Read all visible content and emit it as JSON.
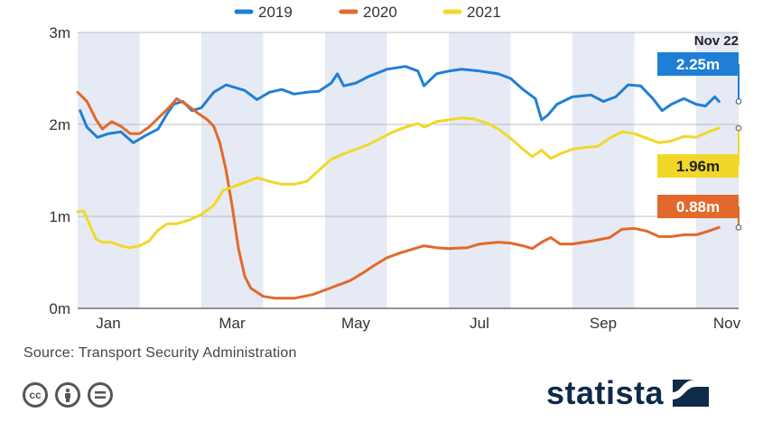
{
  "chart_data": {
    "type": "line",
    "title": "",
    "xlabel": "",
    "ylabel": "",
    "ylim": [
      0,
      3
    ],
    "y_ticks": [
      "0m",
      "1m",
      "2m",
      "3m"
    ],
    "x_ticks": [
      "Jan",
      "Mar",
      "May",
      "Jul",
      "Sep",
      "Nov"
    ],
    "end_date_label": "Nov 22",
    "legend_placement": "top",
    "series": [
      {
        "name": "2019",
        "color": "#1f7fd6",
        "end_label": "2.25m",
        "points": [
          [
            0.04,
            2.15
          ],
          [
            0.15,
            1.97
          ],
          [
            0.32,
            1.86
          ],
          [
            0.5,
            1.9
          ],
          [
            0.7,
            1.92
          ],
          [
            0.9,
            1.8
          ],
          [
            1.1,
            1.88
          ],
          [
            1.3,
            1.95
          ],
          [
            1.45,
            2.12
          ],
          [
            1.55,
            2.22
          ],
          [
            1.7,
            2.25
          ],
          [
            1.85,
            2.15
          ],
          [
            2.0,
            2.18
          ],
          [
            2.2,
            2.35
          ],
          [
            2.4,
            2.43
          ],
          [
            2.7,
            2.37
          ],
          [
            2.9,
            2.27
          ],
          [
            3.1,
            2.35
          ],
          [
            3.3,
            2.38
          ],
          [
            3.5,
            2.33
          ],
          [
            3.7,
            2.35
          ],
          [
            3.9,
            2.36
          ],
          [
            4.1,
            2.45
          ],
          [
            4.2,
            2.55
          ],
          [
            4.3,
            2.42
          ],
          [
            4.5,
            2.45
          ],
          [
            4.7,
            2.52
          ],
          [
            5.0,
            2.6
          ],
          [
            5.3,
            2.63
          ],
          [
            5.5,
            2.58
          ],
          [
            5.6,
            2.42
          ],
          [
            5.8,
            2.55
          ],
          [
            6.0,
            2.58
          ],
          [
            6.2,
            2.6
          ],
          [
            6.5,
            2.58
          ],
          [
            6.8,
            2.55
          ],
          [
            7.0,
            2.5
          ],
          [
            7.2,
            2.38
          ],
          [
            7.4,
            2.28
          ],
          [
            7.5,
            2.05
          ],
          [
            7.6,
            2.1
          ],
          [
            7.75,
            2.22
          ],
          [
            8.0,
            2.3
          ],
          [
            8.3,
            2.32
          ],
          [
            8.5,
            2.25
          ],
          [
            8.7,
            2.3
          ],
          [
            8.9,
            2.43
          ],
          [
            9.1,
            2.42
          ],
          [
            9.3,
            2.28
          ],
          [
            9.45,
            2.15
          ],
          [
            9.6,
            2.22
          ],
          [
            9.8,
            2.28
          ],
          [
            10.0,
            2.22
          ],
          [
            10.15,
            2.2
          ],
          [
            10.3,
            2.3
          ],
          [
            10.37,
            2.25
          ]
        ]
      },
      {
        "name": "2020",
        "color": "#e2692b",
        "end_label": "0.88m",
        "points": [
          [
            0.0,
            2.35
          ],
          [
            0.15,
            2.25
          ],
          [
            0.3,
            2.05
          ],
          [
            0.4,
            1.95
          ],
          [
            0.55,
            2.03
          ],
          [
            0.7,
            1.98
          ],
          [
            0.85,
            1.9
          ],
          [
            1.0,
            1.9
          ],
          [
            1.15,
            1.97
          ],
          [
            1.35,
            2.1
          ],
          [
            1.5,
            2.2
          ],
          [
            1.6,
            2.28
          ],
          [
            1.75,
            2.22
          ],
          [
            1.95,
            2.12
          ],
          [
            2.1,
            2.05
          ],
          [
            2.2,
            1.98
          ],
          [
            2.3,
            1.8
          ],
          [
            2.4,
            1.5
          ],
          [
            2.5,
            1.1
          ],
          [
            2.6,
            0.65
          ],
          [
            2.7,
            0.35
          ],
          [
            2.8,
            0.22
          ],
          [
            3.0,
            0.13
          ],
          [
            3.2,
            0.11
          ],
          [
            3.5,
            0.11
          ],
          [
            3.8,
            0.15
          ],
          [
            4.0,
            0.2
          ],
          [
            4.2,
            0.25
          ],
          [
            4.4,
            0.3
          ],
          [
            4.6,
            0.38
          ],
          [
            4.8,
            0.47
          ],
          [
            5.0,
            0.55
          ],
          [
            5.2,
            0.6
          ],
          [
            5.4,
            0.64
          ],
          [
            5.6,
            0.68
          ],
          [
            5.8,
            0.66
          ],
          [
            6.0,
            0.65
          ],
          [
            6.3,
            0.66
          ],
          [
            6.5,
            0.7
          ],
          [
            6.8,
            0.72
          ],
          [
            7.0,
            0.71
          ],
          [
            7.2,
            0.68
          ],
          [
            7.35,
            0.65
          ],
          [
            7.5,
            0.72
          ],
          [
            7.65,
            0.77
          ],
          [
            7.8,
            0.7
          ],
          [
            8.0,
            0.7
          ],
          [
            8.3,
            0.73
          ],
          [
            8.6,
            0.77
          ],
          [
            8.8,
            0.86
          ],
          [
            9.0,
            0.87
          ],
          [
            9.2,
            0.84
          ],
          [
            9.4,
            0.78
          ],
          [
            9.6,
            0.78
          ],
          [
            9.8,
            0.8
          ],
          [
            10.0,
            0.8
          ],
          [
            10.2,
            0.84
          ],
          [
            10.37,
            0.88
          ]
        ]
      },
      {
        "name": "2021",
        "color": "#f2d729",
        "end_label": "1.96m",
        "points": [
          [
            0.0,
            1.05
          ],
          [
            0.1,
            1.06
          ],
          [
            0.2,
            0.9
          ],
          [
            0.3,
            0.75
          ],
          [
            0.4,
            0.72
          ],
          [
            0.55,
            0.72
          ],
          [
            0.7,
            0.68
          ],
          [
            0.85,
            0.66
          ],
          [
            1.0,
            0.68
          ],
          [
            1.15,
            0.73
          ],
          [
            1.3,
            0.85
          ],
          [
            1.45,
            0.92
          ],
          [
            1.6,
            0.92
          ],
          [
            1.8,
            0.96
          ],
          [
            2.0,
            1.02
          ],
          [
            2.2,
            1.12
          ],
          [
            2.35,
            1.28
          ],
          [
            2.5,
            1.32
          ],
          [
            2.7,
            1.37
          ],
          [
            2.9,
            1.42
          ],
          [
            3.1,
            1.38
          ],
          [
            3.3,
            1.35
          ],
          [
            3.5,
            1.35
          ],
          [
            3.7,
            1.38
          ],
          [
            3.9,
            1.5
          ],
          [
            4.1,
            1.62
          ],
          [
            4.3,
            1.68
          ],
          [
            4.5,
            1.73
          ],
          [
            4.7,
            1.78
          ],
          [
            4.9,
            1.85
          ],
          [
            5.1,
            1.92
          ],
          [
            5.3,
            1.97
          ],
          [
            5.5,
            2.01
          ],
          [
            5.6,
            1.97
          ],
          [
            5.8,
            2.03
          ],
          [
            6.0,
            2.05
          ],
          [
            6.2,
            2.07
          ],
          [
            6.4,
            2.06
          ],
          [
            6.6,
            2.02
          ],
          [
            6.8,
            1.95
          ],
          [
            7.0,
            1.85
          ],
          [
            7.2,
            1.73
          ],
          [
            7.35,
            1.65
          ],
          [
            7.5,
            1.72
          ],
          [
            7.65,
            1.63
          ],
          [
            7.8,
            1.68
          ],
          [
            8.0,
            1.73
          ],
          [
            8.2,
            1.75
          ],
          [
            8.4,
            1.76
          ],
          [
            8.6,
            1.85
          ],
          [
            8.8,
            1.92
          ],
          [
            9.0,
            1.9
          ],
          [
            9.2,
            1.85
          ],
          [
            9.4,
            1.8
          ],
          [
            9.6,
            1.82
          ],
          [
            9.8,
            1.87
          ],
          [
            10.0,
            1.86
          ],
          [
            10.2,
            1.92
          ],
          [
            10.37,
            1.96
          ]
        ]
      }
    ]
  },
  "footer": {
    "source": "Source: Transport Security Administration",
    "brand": "statista",
    "cc_icons": [
      "cc-icon",
      "attribution-icon",
      "no-derivatives-icon"
    ]
  }
}
